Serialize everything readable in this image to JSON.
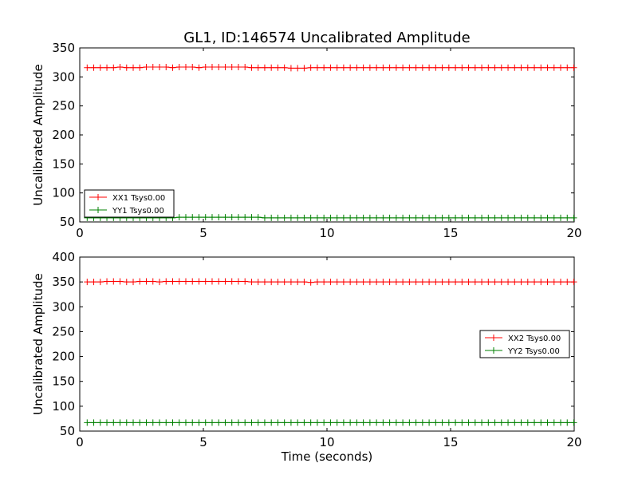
{
  "chart_data": [
    {
      "type": "line",
      "title": "GL1, ID:146574 Uncalibrated Amplitude",
      "xlabel": "",
      "ylabel": "Uncalibrated Amplitude",
      "xlim": [
        0,
        20
      ],
      "ylim": [
        50,
        350
      ],
      "xticks": [
        0,
        5,
        10,
        15,
        20
      ],
      "yticks": [
        50,
        100,
        150,
        200,
        250,
        300,
        350
      ],
      "legend_position": "lower-left",
      "x_start": 0.3,
      "x_step": 0.266,
      "series": [
        {
          "name": "XX1 Tsys0.00",
          "color": "#ff0000",
          "values": [
            316,
            316,
            316,
            316,
            316,
            317,
            316,
            316,
            316,
            317,
            317,
            317,
            317,
            316,
            317,
            317,
            317,
            316,
            317,
            317,
            317,
            317,
            317,
            317,
            317,
            316,
            316,
            316,
            316,
            316,
            316,
            315,
            315,
            315,
            316,
            316,
            316,
            316,
            316,
            316,
            316,
            316,
            316,
            316,
            316,
            316,
            316,
            316,
            316,
            316,
            316,
            316,
            316,
            316,
            316,
            316,
            316,
            316,
            316,
            316,
            316,
            316,
            316,
            316,
            316,
            316,
            316,
            316,
            316,
            316,
            316,
            316,
            316,
            316,
            316
          ]
        },
        {
          "name": "YY1 Tsys0.00",
          "color": "#008000",
          "values": [
            57,
            57,
            57,
            57,
            57,
            57,
            57,
            57,
            57,
            57,
            57,
            57,
            57,
            57,
            58,
            58,
            58,
            58,
            58,
            58,
            58,
            58,
            58,
            58,
            58,
            58,
            58,
            57,
            57,
            57,
            57,
            57,
            57,
            57,
            57,
            57,
            57,
            57,
            57,
            57,
            57,
            57,
            57,
            57,
            57,
            57,
            57,
            57,
            57,
            57,
            57,
            57,
            57,
            57,
            57,
            57,
            57,
            57,
            57,
            57,
            57,
            57,
            57,
            57,
            57,
            57,
            57,
            57,
            57,
            57,
            57,
            57,
            57,
            57,
            57
          ]
        }
      ]
    },
    {
      "type": "line",
      "title": "",
      "xlabel": "Time (seconds)",
      "ylabel": "Uncalibrated Amplitude",
      "xlim": [
        0,
        20
      ],
      "ylim": [
        50,
        400
      ],
      "xticks": [
        0,
        5,
        10,
        15,
        20
      ],
      "yticks": [
        50,
        100,
        150,
        200,
        250,
        300,
        350,
        400
      ],
      "legend_position": "center-right",
      "x_start": 0.3,
      "x_step": 0.266,
      "series": [
        {
          "name": "XX2 Tsys0.00",
          "color": "#ff0000",
          "values": [
            350,
            350,
            350,
            351,
            351,
            351,
            350,
            350,
            351,
            351,
            351,
            350,
            351,
            351,
            351,
            351,
            351,
            351,
            351,
            351,
            351,
            351,
            351,
            351,
            351,
            350,
            350,
            350,
            350,
            350,
            350,
            350,
            350,
            350,
            349,
            350,
            350,
            350,
            350,
            350,
            350,
            350,
            350,
            350,
            350,
            350,
            350,
            350,
            350,
            350,
            350,
            350,
            350,
            350,
            350,
            350,
            350,
            350,
            350,
            350,
            350,
            350,
            350,
            350,
            350,
            350,
            350,
            350,
            350,
            350,
            350,
            350,
            350,
            350,
            350
          ]
        },
        {
          "name": "YY2 Tsys0.00",
          "color": "#008000",
          "values": [
            67,
            67,
            67,
            67,
            67,
            67,
            67,
            67,
            67,
            67,
            67,
            67,
            67,
            67,
            67,
            67,
            67,
            67,
            67,
            67,
            67,
            67,
            67,
            67,
            67,
            67,
            67,
            67,
            67,
            67,
            67,
            67,
            67,
            67,
            67,
            67,
            67,
            67,
            67,
            67,
            67,
            67,
            67,
            67,
            67,
            67,
            67,
            67,
            67,
            67,
            67,
            67,
            67,
            67,
            67,
            67,
            67,
            67,
            67,
            67,
            67,
            67,
            67,
            67,
            67,
            67,
            67,
            67,
            67,
            67,
            67,
            67,
            67,
            67,
            67
          ]
        }
      ]
    }
  ]
}
